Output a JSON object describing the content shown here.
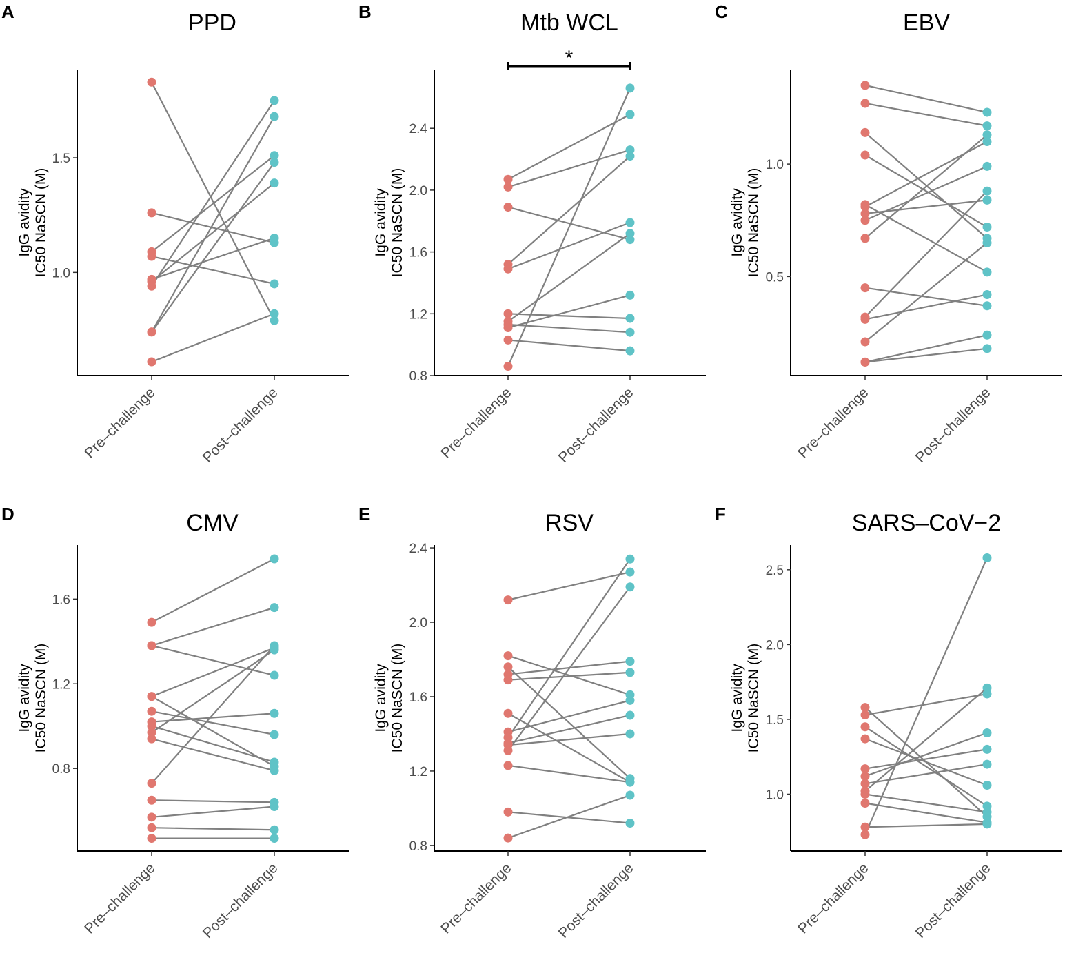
{
  "colors": {
    "pre": "#E0776F",
    "post": "#5FC3C7",
    "line": "#808080"
  },
  "chart_data": [
    {
      "type": "line",
      "letter": "A",
      "title": "PPD",
      "categories": [
        "Pre–challenge",
        "Post–challenge"
      ],
      "ylabel": [
        "IgG avidity",
        "IC50 NaSCN (M)"
      ],
      "ylim": [
        0.55,
        1.885
      ],
      "yticks": [
        1.0,
        1.5
      ],
      "tick_labels": [
        "1.0",
        "1.5"
      ],
      "pairs": [
        [
          1.83,
          0.79
        ],
        [
          1.26,
          1.13
        ],
        [
          1.09,
          1.51
        ],
        [
          1.07,
          0.95
        ],
        [
          0.97,
          1.15
        ],
        [
          0.96,
          1.39
        ],
        [
          0.94,
          1.75
        ],
        [
          0.74,
          1.68
        ],
        [
          0.74,
          1.48
        ],
        [
          0.61,
          0.82
        ]
      ],
      "significance": null
    },
    {
      "type": "line",
      "letter": "B",
      "title": "Mtb WCL",
      "categories": [
        "Pre–challenge",
        "Post–challenge"
      ],
      "ylabel": [
        "IgG avidity",
        "IC50 NaSCN (M)"
      ],
      "ylim": [
        0.8,
        2.78
      ],
      "yticks": [
        0.8,
        1.2,
        1.6,
        2.0,
        2.4
      ],
      "tick_labels": [
        "0.8",
        "1.2",
        "1.6",
        "2.0",
        "2.4"
      ],
      "pairs": [
        [
          2.07,
          2.49
        ],
        [
          2.02,
          2.26
        ],
        [
          1.89,
          1.68
        ],
        [
          1.52,
          2.22
        ],
        [
          1.49,
          1.79
        ],
        [
          1.2,
          1.17
        ],
        [
          1.15,
          1.72
        ],
        [
          1.13,
          1.08
        ],
        [
          1.11,
          1.32
        ],
        [
          1.03,
          0.96
        ],
        [
          0.86,
          2.66
        ]
      ],
      "significance": {
        "label": "*",
        "from": 0,
        "to": 1
      }
    },
    {
      "type": "line",
      "letter": "C",
      "title": "EBV",
      "categories": [
        "Pre–challenge",
        "Post–challenge"
      ],
      "ylabel": [
        "IgG avidity",
        "IC50 NaSCN (M)"
      ],
      "ylim": [
        0.06,
        1.42
      ],
      "yticks": [
        0.5,
        1.0
      ],
      "tick_labels": [
        "0.5",
        "1.0"
      ],
      "pairs": [
        [
          1.35,
          1.23
        ],
        [
          1.27,
          1.17
        ],
        [
          1.14,
          0.67
        ],
        [
          1.04,
          0.72
        ],
        [
          0.82,
          0.52
        ],
        [
          0.81,
          1.1
        ],
        [
          0.78,
          0.84
        ],
        [
          0.75,
          0.99
        ],
        [
          0.67,
          1.13
        ],
        [
          0.45,
          0.37
        ],
        [
          0.32,
          0.88
        ],
        [
          0.31,
          0.42
        ],
        [
          0.21,
          0.65
        ],
        [
          0.12,
          0.24
        ],
        [
          0.12,
          0.18
        ]
      ],
      "significance": null
    },
    {
      "type": "line",
      "letter": "D",
      "title": "CMV",
      "categories": [
        "Pre–challenge",
        "Post–challenge"
      ],
      "ylabel": [
        "IgG avidity",
        "IC50 NaSCN (M)"
      ],
      "ylim": [
        0.41,
        1.855
      ],
      "yticks": [
        0.8,
        1.2,
        1.6
      ],
      "tick_labels": [
        "0.8",
        "1.2",
        "1.6"
      ],
      "pairs": [
        [
          1.49,
          1.79
        ],
        [
          1.38,
          1.24
        ],
        [
          1.38,
          1.56
        ],
        [
          1.14,
          1.37
        ],
        [
          1.14,
          0.81
        ],
        [
          1.07,
          0.96
        ],
        [
          1.02,
          1.06
        ],
        [
          1.0,
          0.83
        ],
        [
          0.97,
          1.36
        ],
        [
          0.94,
          0.79
        ],
        [
          0.73,
          1.38
        ],
        [
          0.65,
          0.64
        ],
        [
          0.57,
          0.62
        ],
        [
          0.52,
          0.51
        ],
        [
          0.47,
          0.47
        ]
      ],
      "significance": null
    },
    {
      "type": "line",
      "letter": "E",
      "title": "RSV",
      "categories": [
        "Pre–challenge",
        "Post–challenge"
      ],
      "ylabel": [
        "IgG avidity",
        "IC50 NaSCN (M)"
      ],
      "ylim": [
        0.77,
        2.415
      ],
      "yticks": [
        0.8,
        1.2,
        1.6,
        2.0,
        2.4
      ],
      "tick_labels": [
        "0.8",
        "1.2",
        "1.6",
        "2.0",
        "2.4"
      ],
      "pairs": [
        [
          2.12,
          2.27
        ],
        [
          1.82,
          1.61
        ],
        [
          1.76,
          1.16
        ],
        [
          1.72,
          1.79
        ],
        [
          1.69,
          1.73
        ],
        [
          1.51,
          1.14
        ],
        [
          1.41,
          1.58
        ],
        [
          1.38,
          2.34
        ],
        [
          1.35,
          1.5
        ],
        [
          1.34,
          1.4
        ],
        [
          1.31,
          2.19
        ],
        [
          1.23,
          1.14
        ],
        [
          0.98,
          0.92
        ],
        [
          0.84,
          1.07
        ]
      ],
      "significance": null
    },
    {
      "type": "line",
      "letter": "F",
      "title": "SARS–CoV−2",
      "categories": [
        "Pre–challenge",
        "Post–challenge"
      ],
      "ylabel": [
        "IgG avidity",
        "IC50 NaSCN (M)"
      ],
      "ylim": [
        0.62,
        2.665
      ],
      "yticks": [
        1.0,
        1.5,
        2.0,
        2.5
      ],
      "tick_labels": [
        "1.0",
        "1.5",
        "2.0",
        "2.5"
      ],
      "pairs": [
        [
          1.58,
          0.85
        ],
        [
          1.53,
          1.67
        ],
        [
          1.45,
          0.92
        ],
        [
          1.37,
          1.06
        ],
        [
          1.17,
          1.3
        ],
        [
          1.12,
          1.41
        ],
        [
          1.07,
          1.2
        ],
        [
          1.02,
          1.71
        ],
        [
          1.0,
          0.88
        ],
        [
          0.94,
          0.81
        ],
        [
          0.78,
          0.8
        ],
        [
          0.73,
          2.58
        ]
      ],
      "significance": null
    }
  ]
}
